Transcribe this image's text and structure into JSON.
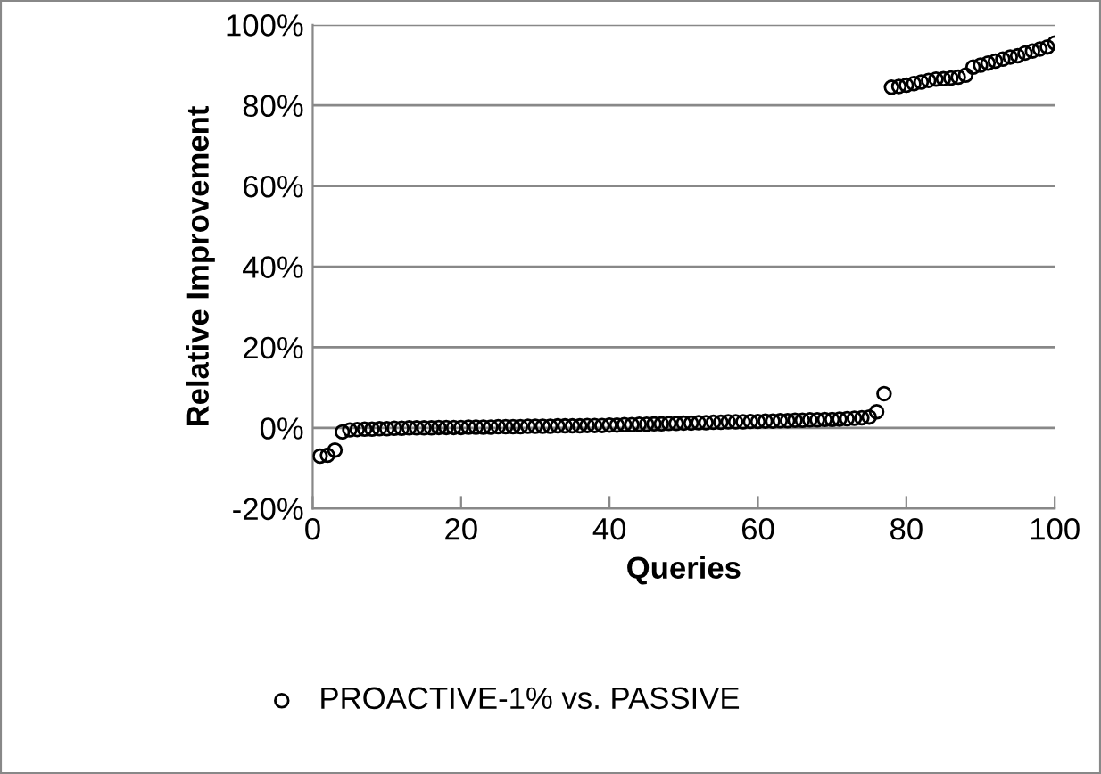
{
  "chart_data": {
    "type": "scatter",
    "xlabel": "Queries",
    "ylabel": "Relative Improvement",
    "x": [
      1,
      2,
      3,
      4,
      5,
      6,
      7,
      8,
      9,
      10,
      11,
      12,
      13,
      14,
      15,
      16,
      17,
      18,
      19,
      20,
      21,
      22,
      23,
      24,
      25,
      26,
      27,
      28,
      29,
      30,
      31,
      32,
      33,
      34,
      35,
      36,
      37,
      38,
      39,
      40,
      41,
      42,
      43,
      44,
      45,
      46,
      47,
      48,
      49,
      50,
      51,
      52,
      53,
      54,
      55,
      56,
      57,
      58,
      59,
      60,
      61,
      62,
      63,
      64,
      65,
      66,
      67,
      68,
      69,
      70,
      71,
      72,
      73,
      74,
      75,
      76,
      77,
      78,
      79,
      80,
      81,
      82,
      83,
      84,
      85,
      86,
      87,
      88,
      89,
      90,
      91,
      92,
      93,
      94,
      95,
      96,
      97,
      98,
      99,
      100
    ],
    "series": [
      {
        "name": "PROACTIVE-1% vs. PASSIVE",
        "color": "#000000",
        "values": [
          -7,
          -6.8,
          -5.5,
          -1.0,
          -0.5,
          -0.4,
          -0.3,
          -0.3,
          -0.2,
          -0.2,
          -0.1,
          -0.1,
          0,
          0,
          0,
          0,
          0.1,
          0.1,
          0.1,
          0.1,
          0.2,
          0.2,
          0.2,
          0.2,
          0.3,
          0.3,
          0.3,
          0.3,
          0.4,
          0.4,
          0.4,
          0.4,
          0.5,
          0.5,
          0.5,
          0.5,
          0.6,
          0.6,
          0.6,
          0.7,
          0.7,
          0.8,
          0.8,
          0.9,
          0.9,
          1.0,
          1.0,
          1.1,
          1.1,
          1.2,
          1.2,
          1.3,
          1.3,
          1.4,
          1.4,
          1.5,
          1.5,
          1.5,
          1.6,
          1.6,
          1.7,
          1.7,
          1.8,
          1.8,
          1.9,
          1.9,
          2.0,
          2.0,
          2.1,
          2.1,
          2.2,
          2.3,
          2.4,
          2.5,
          2.7,
          4.0,
          8.5,
          84.5,
          84.7,
          85.0,
          85.4,
          85.8,
          86.2,
          86.5,
          86.6,
          86.8,
          87.0,
          87.5,
          89.5,
          90.0,
          90.5,
          91.0,
          91.5,
          92.0,
          92.3,
          93.0,
          93.5,
          94.0,
          94.5,
          95.5
        ]
      }
    ],
    "xlim": [
      0,
      100
    ],
    "xticks": [
      0,
      20,
      40,
      60,
      80,
      100
    ],
    "ylim": [
      -20,
      100
    ],
    "yticks": [
      {
        "value": -20,
        "label": "-20%"
      },
      {
        "value": 0,
        "label": "0%"
      },
      {
        "value": 20,
        "label": "20%"
      },
      {
        "value": 40,
        "label": "40%"
      },
      {
        "value": 60,
        "label": "60%"
      },
      {
        "value": 80,
        "label": "80%"
      },
      {
        "value": 100,
        "label": "100%"
      }
    ],
    "grid": "y",
    "legend": "bottom",
    "marker": "circle"
  }
}
